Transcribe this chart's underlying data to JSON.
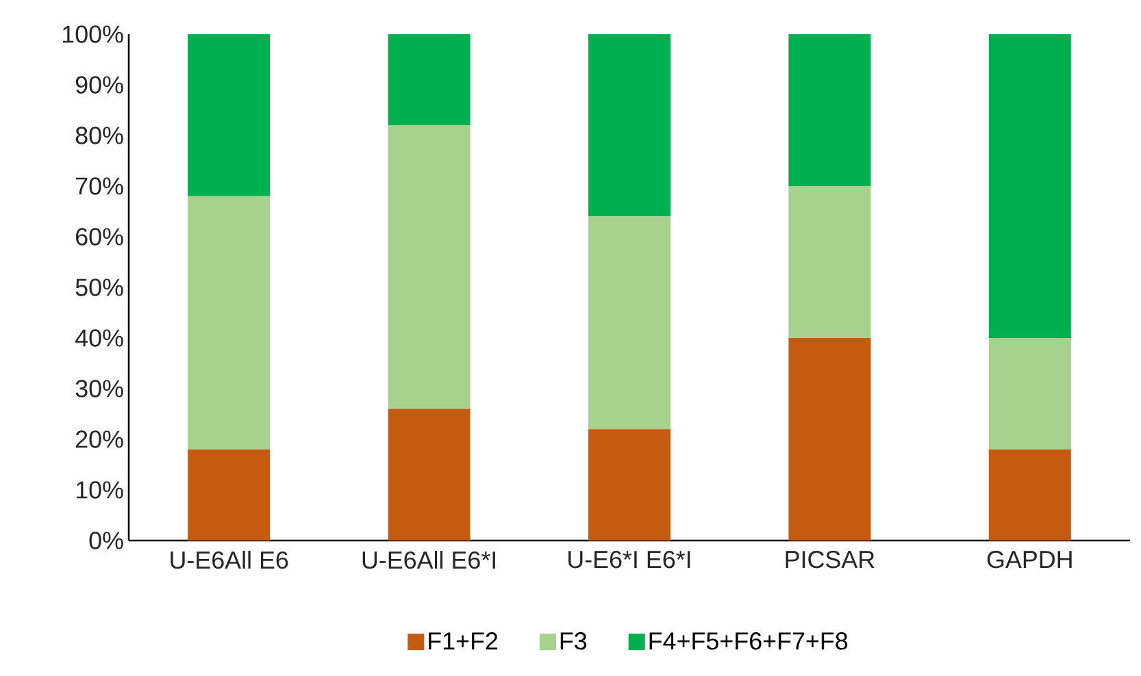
{
  "chart_data": {
    "type": "bar",
    "stacked": true,
    "categories": [
      "U-E6All E6",
      "U-E6All E6*I",
      "U-E6*I E6*I",
      "PICSAR",
      "GAPDH"
    ],
    "series": [
      {
        "name": "F1+F2",
        "color": "#c55a11",
        "values": [
          18,
          26,
          22,
          40,
          18
        ]
      },
      {
        "name": "F3",
        "color": "#a9d18e",
        "values": [
          50,
          56,
          42,
          30,
          22
        ]
      },
      {
        "name": "F4+F5+F6+F7+F8",
        "color": "#00b050",
        "values": [
          32,
          18,
          36,
          30,
          60
        ]
      }
    ],
    "ylim": [
      0,
      100
    ],
    "yticks": [
      {
        "value": 0,
        "label": "0%"
      },
      {
        "value": 10,
        "label": "10%"
      },
      {
        "value": 20,
        "label": "20%"
      },
      {
        "value": 30,
        "label": "30%"
      },
      {
        "value": 40,
        "label": "40%"
      },
      {
        "value": 50,
        "label": "50%"
      },
      {
        "value": 60,
        "label": "60%"
      },
      {
        "value": 70,
        "label": "70%"
      },
      {
        "value": 80,
        "label": "80%"
      },
      {
        "value": 90,
        "label": "90%"
      },
      {
        "value": 100,
        "label": "100%"
      }
    ],
    "grid": false,
    "legend": "bottom"
  }
}
